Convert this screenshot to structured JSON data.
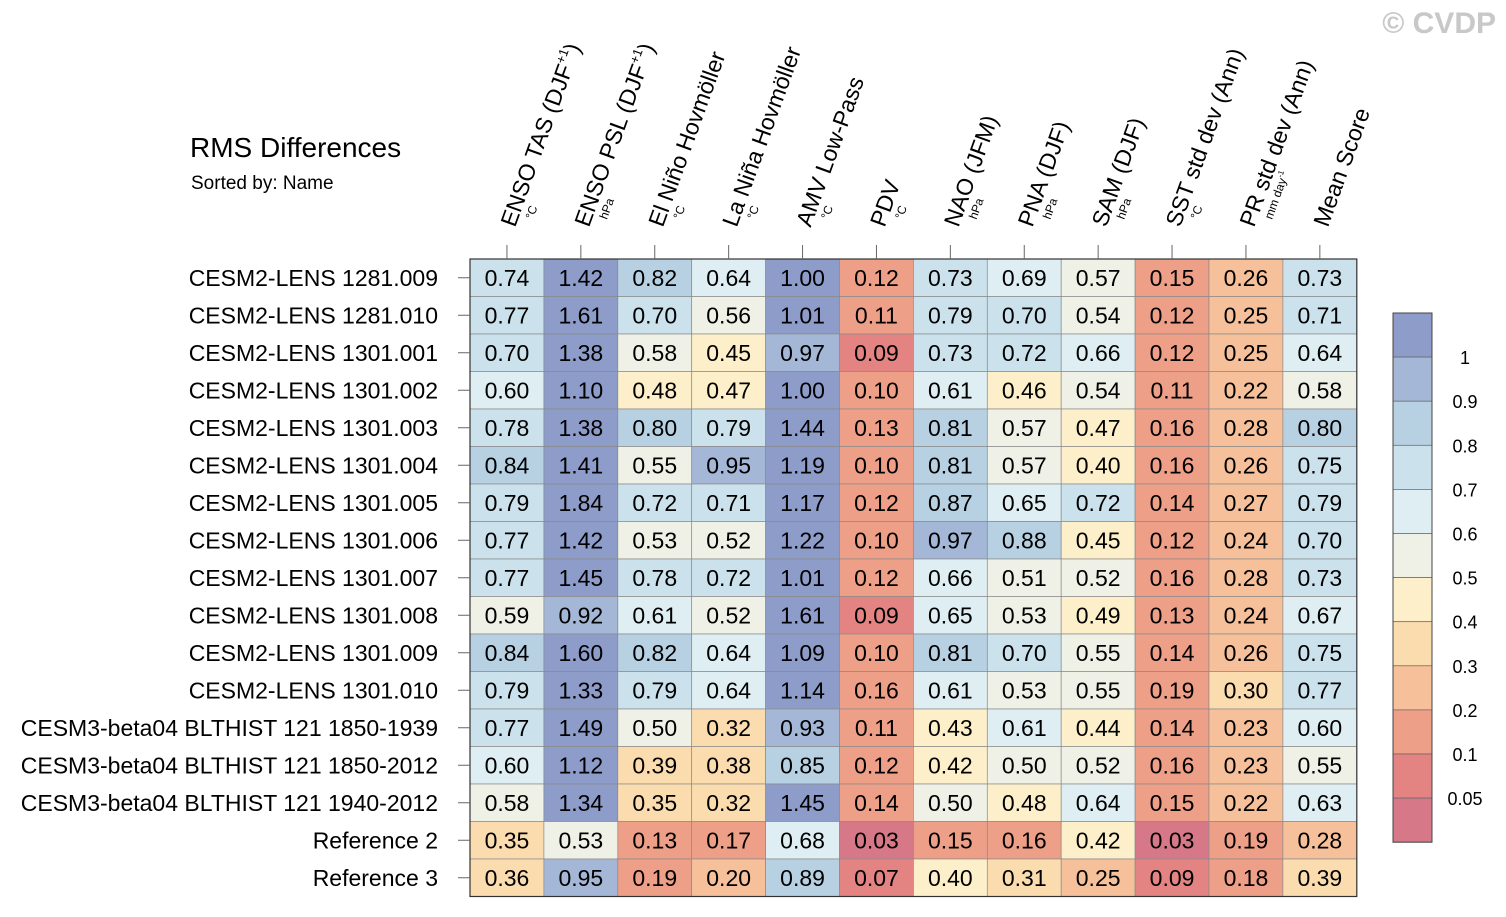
{
  "watermark": "© CVDP",
  "chart_data": {
    "type": "heatmap",
    "title": "RMS Differences",
    "subtitle": "Sorted by: Name",
    "columns": [
      {
        "label": "ENSO TAS (DJF+1)",
        "unit": "°C"
      },
      {
        "label": "ENSO PSL (DJF+1)",
        "unit": "hPa"
      },
      {
        "label": "El Niño Hovmöller",
        "unit": "°C"
      },
      {
        "label": "La Niña Hovmöller",
        "unit": "°C"
      },
      {
        "label": "AMV Low-Pass",
        "unit": "°C"
      },
      {
        "label": "PDV",
        "unit": "°C"
      },
      {
        "label": "NAO (JFM)",
        "unit": "hPa"
      },
      {
        "label": "PNA (DJF)",
        "unit": "hPa"
      },
      {
        "label": "SAM (DJF)",
        "unit": "hPa"
      },
      {
        "label": "SST std dev (Ann)",
        "unit": "°C"
      },
      {
        "label": "PR std dev (Ann)",
        "unit": "mm day-1"
      },
      {
        "label": "Mean Score",
        "unit": ""
      }
    ],
    "rows": [
      "CESM2-LENS 1281.009",
      "CESM2-LENS 1281.010",
      "CESM2-LENS 1301.001",
      "CESM2-LENS 1301.002",
      "CESM2-LENS 1301.003",
      "CESM2-LENS 1301.004",
      "CESM2-LENS 1301.005",
      "CESM2-LENS 1301.006",
      "CESM2-LENS 1301.007",
      "CESM2-LENS 1301.008",
      "CESM2-LENS 1301.009",
      "CESM2-LENS 1301.010",
      "CESM3-beta04 BLTHIST 121 1850-1939",
      "CESM3-beta04 BLTHIST 121 1850-2012",
      "CESM3-beta04 BLTHIST 121 1940-2012",
      "Reference 2",
      "Reference 3"
    ],
    "values": [
      [
        "0.74",
        "1.42",
        "0.82",
        "0.64",
        "1.00",
        "0.12",
        "0.73",
        "0.69",
        "0.57",
        "0.15",
        "0.26",
        "0.73"
      ],
      [
        "0.77",
        "1.61",
        "0.70",
        "0.56",
        "1.01",
        "0.11",
        "0.79",
        "0.70",
        "0.54",
        "0.12",
        "0.25",
        "0.71"
      ],
      [
        "0.70",
        "1.38",
        "0.58",
        "0.45",
        "0.97",
        "0.09",
        "0.73",
        "0.72",
        "0.66",
        "0.12",
        "0.25",
        "0.64"
      ],
      [
        "0.60",
        "1.10",
        "0.48",
        "0.47",
        "1.00",
        "0.10",
        "0.61",
        "0.46",
        "0.54",
        "0.11",
        "0.22",
        "0.58"
      ],
      [
        "0.78",
        "1.38",
        "0.80",
        "0.79",
        "1.44",
        "0.13",
        "0.81",
        "0.57",
        "0.47",
        "0.16",
        "0.28",
        "0.80"
      ],
      [
        "0.84",
        "1.41",
        "0.55",
        "0.95",
        "1.19",
        "0.10",
        "0.81",
        "0.57",
        "0.40",
        "0.16",
        "0.26",
        "0.75"
      ],
      [
        "0.79",
        "1.84",
        "0.72",
        "0.71",
        "1.17",
        "0.12",
        "0.87",
        "0.65",
        "0.72",
        "0.14",
        "0.27",
        "0.79"
      ],
      [
        "0.77",
        "1.42",
        "0.53",
        "0.52",
        "1.22",
        "0.10",
        "0.97",
        "0.88",
        "0.45",
        "0.12",
        "0.24",
        "0.70"
      ],
      [
        "0.77",
        "1.45",
        "0.78",
        "0.72",
        "1.01",
        "0.12",
        "0.66",
        "0.51",
        "0.52",
        "0.16",
        "0.28",
        "0.73"
      ],
      [
        "0.59",
        "0.92",
        "0.61",
        "0.52",
        "1.61",
        "0.09",
        "0.65",
        "0.53",
        "0.49",
        "0.13",
        "0.24",
        "0.67"
      ],
      [
        "0.84",
        "1.60",
        "0.82",
        "0.64",
        "1.09",
        "0.10",
        "0.81",
        "0.70",
        "0.55",
        "0.14",
        "0.26",
        "0.75"
      ],
      [
        "0.79",
        "1.33",
        "0.79",
        "0.64",
        "1.14",
        "0.16",
        "0.61",
        "0.53",
        "0.55",
        "0.19",
        "0.30",
        "0.77"
      ],
      [
        "0.77",
        "1.49",
        "0.50",
        "0.32",
        "0.93",
        "0.11",
        "0.43",
        "0.61",
        "0.44",
        "0.14",
        "0.23",
        "0.60"
      ],
      [
        "0.60",
        "1.12",
        "0.39",
        "0.38",
        "0.85",
        "0.12",
        "0.42",
        "0.50",
        "0.52",
        "0.16",
        "0.23",
        "0.55"
      ],
      [
        "0.58",
        "1.34",
        "0.35",
        "0.32",
        "1.45",
        "0.14",
        "0.50",
        "0.48",
        "0.64",
        "0.15",
        "0.22",
        "0.63"
      ],
      [
        "0.35",
        "0.53",
        "0.13",
        "0.17",
        "0.68",
        "0.03",
        "0.15",
        "0.16",
        "0.42",
        "0.03",
        "0.19",
        "0.28"
      ],
      [
        "0.36",
        "0.95",
        "0.19",
        "0.20",
        "0.89",
        "0.07",
        "0.40",
        "0.31",
        "0.25",
        "0.09",
        "0.18",
        "0.39"
      ]
    ],
    "colorbar": {
      "levels": [
        "1",
        "0.9",
        "0.8",
        "0.7",
        "0.6",
        "0.5",
        "0.4",
        "0.3",
        "0.2",
        "0.1",
        "0.05"
      ],
      "colors": [
        "#8d9cc9",
        "#a4b7d7",
        "#b7d1e3",
        "#cbe1ec",
        "#dfeef2",
        "#f0f1e6",
        "#fcefc9",
        "#fbdcaf",
        "#f6c09b",
        "#ee9f88",
        "#e38483",
        "#d77889"
      ]
    }
  }
}
